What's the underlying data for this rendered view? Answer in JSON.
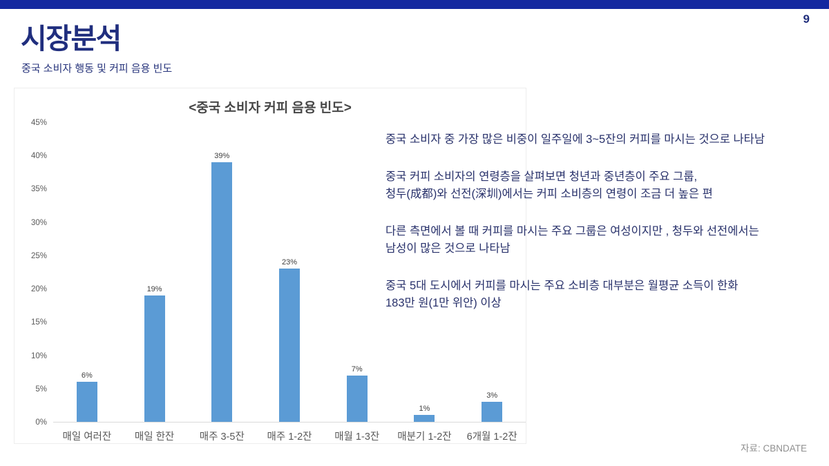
{
  "page": {
    "number": "9"
  },
  "colors": {
    "accent_bar": "#1428a0",
    "title_navy": "#202e7e",
    "body_navy": "#28316b",
    "bar_blue": "#5b9bd5",
    "axis_gray": "#595959",
    "source_gray": "#8f8f8f"
  },
  "header": {
    "title": "시장분석",
    "subtitle": "중국 소비자 행동 및 커피 음용 빈도"
  },
  "chart_data": {
    "type": "bar",
    "title": "<중국 소비자 커피 음용 빈도>",
    "categories": [
      "매일 여러잔",
      "매일 한잔",
      "매주 3-5잔",
      "매주 1-2잔",
      "매월 1-3잔",
      "매분기 1-2잔",
      "6개월 1-2잔"
    ],
    "values": [
      6,
      19,
      39,
      23,
      7,
      1,
      3
    ],
    "value_labels": [
      "6%",
      "19%",
      "39%",
      "23%",
      "7%",
      "1%",
      "3%"
    ],
    "xlabel": "",
    "ylabel": "",
    "ylim": [
      0,
      45
    ],
    "ytick_step": 5,
    "yticks": [
      "0%",
      "5%",
      "10%",
      "15%",
      "20%",
      "25%",
      "30%",
      "35%",
      "40%",
      "45%"
    ],
    "grid": false,
    "legend": false,
    "bar_color": "#5b9bd5"
  },
  "insights": {
    "paragraphs": [
      {
        "lines": [
          "중국 소비자 중 가장 많은 비중이 일주일에 3~5잔의 커피를 마시는 것으로 나타남"
        ]
      },
      {
        "lines": [
          " 중국 커피 소비자의 연령층을 살펴보면 청년과 중년층이 주요 그룹,",
          "청두(成都)와 선전(深圳)에서는 커피 소비층의 연령이 조금 더 높은 편"
        ]
      },
      {
        "lines": [
          " 다른 측면에서 볼 때 커피를 마시는 주요 그룹은 여성이지만 , 청두와 선전에서는",
          "남성이 많은 것으로 나타남"
        ]
      },
      {
        "lines": [
          " 중국 5대 도시에서 커피를 마시는 주요 소비층 대부분은 월평균 소득이 한화",
          "183만 원(1만 위안) 이상"
        ]
      }
    ]
  },
  "footer": {
    "source": "자료: CBNDATE"
  }
}
